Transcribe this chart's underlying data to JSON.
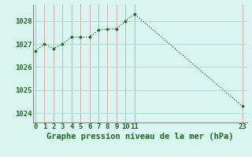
{
  "x": [
    0,
    1,
    2,
    3,
    4,
    5,
    6,
    7,
    8,
    9,
    10,
    11,
    23
  ],
  "y": [
    1026.7,
    1027.0,
    1026.8,
    1027.0,
    1027.3,
    1027.3,
    1027.3,
    1027.6,
    1027.65,
    1027.65,
    1028.0,
    1028.3,
    1024.3
  ],
  "line_color": "#1a6b1a",
  "marker_color": "#1a6b1a",
  "bg_color": "#d8f5f0",
  "grid_color": "#aad8d0",
  "grid_vcolor": "#ccb0b0",
  "xlabel": "Graphe pression niveau de la mer (hPa)",
  "xlabel_color": "#1a6b1a",
  "xticks": [
    0,
    1,
    2,
    3,
    4,
    5,
    6,
    7,
    8,
    9,
    10,
    11,
    23
  ],
  "yticks": [
    1024,
    1025,
    1026,
    1027,
    1028
  ],
  "ylim": [
    1023.6,
    1028.7
  ],
  "xlim": [
    -0.3,
    23.5
  ],
  "tick_color": "#1a6b1a",
  "label_fontsize": 7.5,
  "tick_fontsize": 6.5,
  "border_color": "#888888"
}
